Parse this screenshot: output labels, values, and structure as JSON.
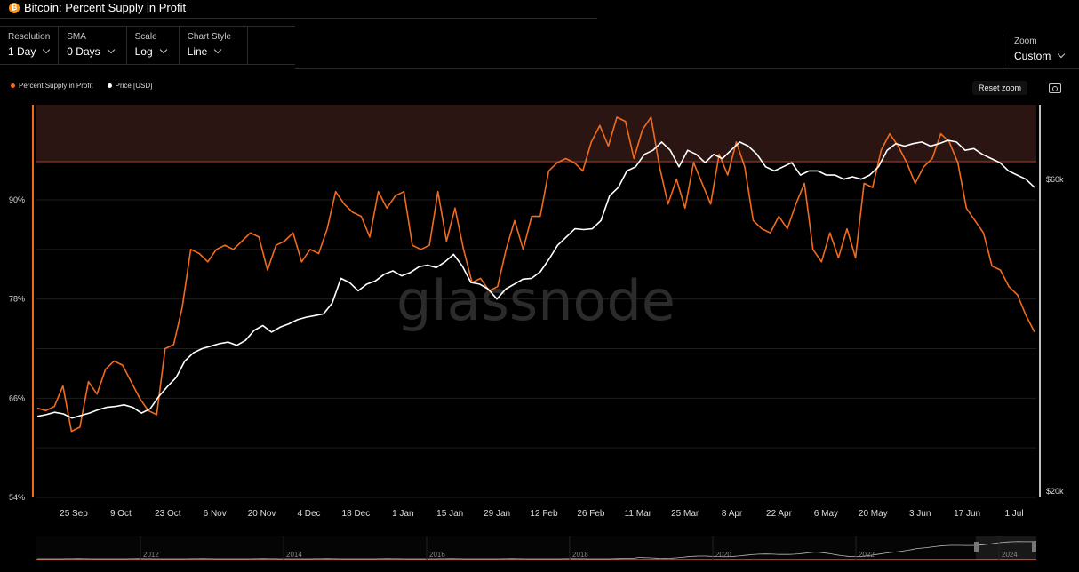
{
  "header": {
    "title": "Bitcoin: Percent Supply in Profit",
    "controls": [
      {
        "label": "Resolution",
        "value": "1 Day"
      },
      {
        "label": "SMA",
        "value": "0 Days"
      },
      {
        "label": "Scale",
        "value": "Log"
      },
      {
        "label": "Chart Style",
        "value": "Line"
      }
    ],
    "zoom": {
      "label": "Zoom",
      "value": "Custom"
    },
    "reset_label": "Reset zoom"
  },
  "legend": [
    {
      "name": "Percent Supply in Profit",
      "color": "#f26b1d"
    },
    {
      "name": "Price [USD]",
      "color": "#ffffff"
    }
  ],
  "watermark": "glassnode",
  "colors": {
    "supply": "#f26b1d",
    "price": "#ffffff",
    "band": "#2a1512",
    "threshold": "#c0392b"
  },
  "chart_data": {
    "type": "line",
    "x_ticks": [
      "25 Sep",
      "9 Oct",
      "23 Oct",
      "6 Nov",
      "20 Nov",
      "4 Dec",
      "18 Dec",
      "1 Jan",
      "15 Jan",
      "29 Jan",
      "12 Feb",
      "26 Feb",
      "11 Mar",
      "25 Mar",
      "8 Apr",
      "22 Apr",
      "6 May",
      "20 May",
      "3 Jun",
      "17 Jun",
      "1 Jul"
    ],
    "y_left": {
      "ticks": [
        "54%",
        "66%",
        "78%",
        "90%"
      ],
      "ylim": [
        54,
        101.5
      ]
    },
    "y_right": {
      "ticks": [
        "$20k",
        "$60k"
      ],
      "scale": "log"
    },
    "threshold_line": 95,
    "series": [
      {
        "name": "Percent Supply in Profit",
        "axis": "left",
        "values": [
          64.8,
          64.5,
          65.0,
          67.5,
          62.0,
          62.5,
          68.0,
          66.5,
          69.5,
          70.5,
          70.0,
          68.0,
          66.0,
          64.5,
          64.0,
          72.0,
          72.5,
          77.0,
          84.0,
          83.5,
          82.5,
          84.0,
          84.5,
          84.0,
          85.0,
          86.0,
          85.5,
          81.5,
          84.5,
          85.0,
          86.0,
          82.5,
          84.0,
          83.5,
          86.5,
          91.0,
          89.5,
          88.5,
          88.0,
          85.5,
          91.0,
          89.0,
          90.5,
          91.0,
          84.5,
          84.0,
          84.5,
          91.0,
          85.0,
          89.0,
          84.0,
          80.0,
          80.5,
          79.0,
          79.5,
          84.0,
          87.5,
          84.0,
          88.0,
          88.0,
          93.5,
          94.5,
          95.0,
          94.5,
          93.5,
          97.0,
          99.0,
          96.5,
          100.0,
          99.5,
          95.0,
          98.5,
          100.0,
          94.0,
          89.5,
          92.5,
          89.0,
          94.5,
          92.0,
          89.5,
          95.5,
          93.0,
          97.0,
          94.0,
          87.5,
          86.5,
          86.0,
          88.0,
          86.5,
          89.5,
          92.0,
          84.0,
          82.5,
          86.0,
          83.0,
          86.5,
          83.0,
          92.0,
          91.5,
          96.0,
          98.0,
          96.5,
          94.5,
          92.0,
          94.0,
          95.0,
          98.0,
          97.0,
          94.5,
          89.0,
          87.5,
          86.0,
          82.0,
          81.5,
          79.5,
          78.5,
          76.0,
          74.0
        ]
      },
      {
        "name": "Price [USD]",
        "axis": "right",
        "values": [
          63.8,
          64.0,
          64.3,
          64.1,
          63.6,
          63.9,
          64.2,
          64.6,
          64.9,
          65.0,
          65.2,
          64.9,
          64.2,
          64.7,
          66.2,
          67.4,
          68.5,
          70.5,
          71.5,
          72.0,
          72.3,
          72.6,
          72.8,
          72.4,
          73.0,
          74.2,
          74.8,
          74.0,
          74.6,
          75.0,
          75.5,
          75.8,
          76.0,
          76.2,
          77.5,
          80.5,
          80.0,
          79.0,
          79.8,
          80.2,
          81.0,
          81.4,
          80.8,
          81.2,
          81.9,
          82.1,
          81.8,
          82.5,
          83.4,
          82.0,
          80.0,
          79.8,
          79.2,
          78.0,
          79.2,
          79.8,
          80.4,
          80.5,
          81.3,
          82.8,
          84.5,
          85.5,
          86.5,
          86.4,
          86.5,
          87.5,
          90.5,
          91.5,
          93.5,
          94.0,
          95.5,
          96.0,
          97.0,
          96.0,
          94.0,
          96.0,
          95.5,
          94.5,
          95.5,
          95.0,
          96.0,
          97.0,
          96.5,
          95.5,
          94.0,
          93.5,
          94.0,
          94.5,
          93.0,
          93.5,
          93.5,
          93.0,
          93.0,
          92.5,
          92.8,
          92.5,
          93.0,
          94.0,
          96.0,
          96.8,
          96.5,
          96.8,
          97.0,
          96.5,
          96.8,
          97.2,
          97.0,
          96.0,
          96.2,
          95.5,
          95.0,
          94.5,
          93.5,
          93.0,
          92.5,
          91.5
        ]
      }
    ]
  },
  "navigator": {
    "years": [
      "2012",
      "2014",
      "2016",
      "2018",
      "2020",
      "2022",
      "2024"
    ]
  }
}
